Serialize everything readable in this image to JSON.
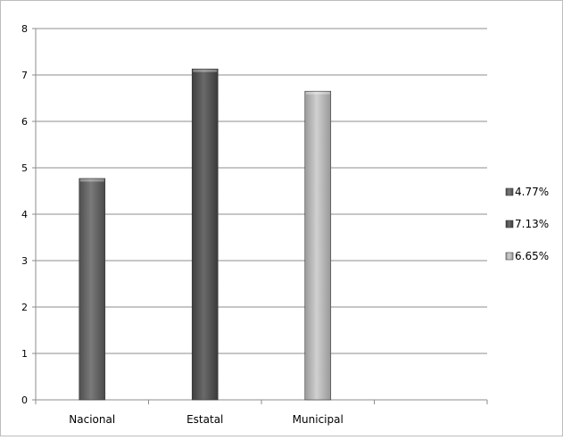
{
  "chart_data": {
    "type": "bar",
    "title": "",
    "xlabel": "",
    "ylabel": "",
    "categories": [
      "Nacional",
      "Estatal",
      "Municipal"
    ],
    "series": [
      {
        "name": "4.77%",
        "values": [
          4.77,
          null,
          null
        ],
        "color": "#6b6b6b"
      },
      {
        "name": "7.13%",
        "values": [
          null,
          7.13,
          null
        ],
        "color": "#5a5a5a"
      },
      {
        "name": "6.65%",
        "values": [
          null,
          null,
          6.65
        ],
        "color": "#b4b4b4"
      }
    ],
    "ylim": [
      0,
      8
    ],
    "yticks": [
      0,
      1,
      2,
      3,
      4,
      5,
      6,
      7,
      8
    ],
    "grid": true,
    "legend_position": "right"
  }
}
